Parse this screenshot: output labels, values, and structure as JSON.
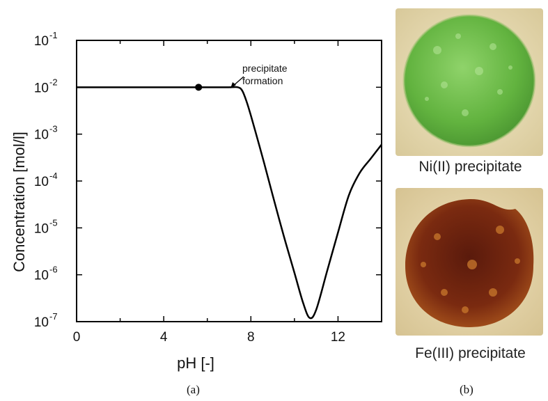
{
  "chart_data": {
    "type": "line",
    "xlabel": "pH [-]",
    "ylabel": "Concentration [mol/l]",
    "xlim": [
      0,
      14
    ],
    "ylim": [
      1e-07,
      0.1
    ],
    "yscale": "log",
    "x_ticks": [
      "0",
      "4",
      "8",
      "12"
    ],
    "y_tick_mantissa": "10",
    "y_tick_exponents": [
      "-1",
      "-2",
      "-3",
      "-4",
      "-5",
      "-6",
      "-7"
    ],
    "grid": false,
    "series": [
      {
        "x": [
          0,
          1,
          2,
          3,
          4,
          5,
          6,
          7,
          7.4,
          7.6,
          7.8,
          8.0,
          8.3,
          8.6,
          9.0,
          9.5,
          10.0,
          10.4,
          10.7,
          11.0,
          11.5,
          12.0,
          12.5,
          13.0,
          13.5,
          14.0
        ],
        "y": [
          0.01,
          0.01,
          0.01,
          0.01,
          0.01,
          0.01,
          0.01,
          0.01,
          0.01,
          0.0085,
          0.005,
          0.0025,
          0.0008,
          0.00025,
          5e-05,
          7e-06,
          1.1e-06,
          2.5e-07,
          1.2e-07,
          1.8e-07,
          1.2e-06,
          8e-06,
          5e-05,
          0.00015,
          0.0003,
          0.0006
        ]
      }
    ],
    "marker_point": {
      "x": 5.6,
      "y": 0.01
    },
    "annotation": {
      "lines": [
        "precipitate",
        "formation"
      ],
      "points_to": {
        "x": 7.5,
        "y": 0.01
      }
    }
  },
  "panel_labels": {
    "a": "(a)",
    "b": "(b)"
  },
  "photos": [
    {
      "caption": "Ni(II)  precipitate",
      "color": "#6ab845"
    },
    {
      "caption": "Fe(III)  precipitate",
      "color": "#6a1f0f"
    }
  ]
}
